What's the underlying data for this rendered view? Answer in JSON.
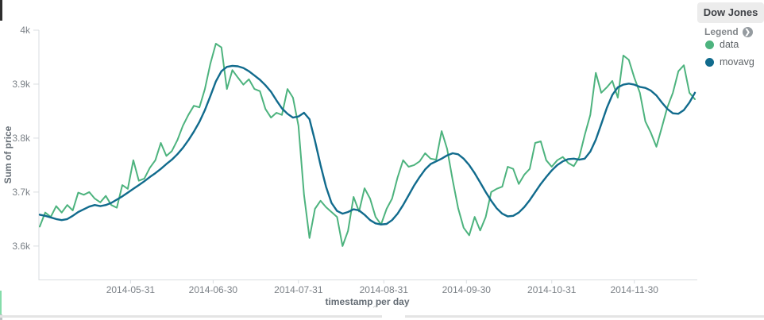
{
  "panel": {
    "title": "Dow Jones",
    "legend": {
      "heading": "Legend",
      "items": [
        {
          "label": "data",
          "color": "#4db37e"
        },
        {
          "label": "movavg",
          "color": "#116b8d"
        }
      ]
    }
  },
  "chart_data": {
    "type": "line",
    "title": "Dow Jones",
    "xlabel": "timestamp per day",
    "ylabel": "Sum of price",
    "grid": false,
    "legend_position": "right",
    "x_start_date": "2014-04-28",
    "x_step_days": 2,
    "ylim": [
      3538,
      4000
    ],
    "y_ticks": [
      {
        "value": 4000,
        "label": "4k"
      },
      {
        "value": 3900,
        "label": "3.9k"
      },
      {
        "value": 3800,
        "label": "3.8k"
      },
      {
        "value": 3700,
        "label": "3.7k"
      },
      {
        "value": 3600,
        "label": "3.6k"
      }
    ],
    "x_ticks": [
      {
        "day": 33,
        "label": "2014-05-31"
      },
      {
        "day": 63,
        "label": "2014-06-30"
      },
      {
        "day": 94,
        "label": "2014-07-31"
      },
      {
        "day": 125,
        "label": "2014-08-31"
      },
      {
        "day": 155,
        "label": "2014-09-30"
      },
      {
        "day": 186,
        "label": "2014-10-31"
      },
      {
        "day": 216,
        "label": "2014-11-30"
      }
    ],
    "series": [
      {
        "name": "data",
        "color": "#4db37e",
        "stroke_width": 2,
        "values": [
          3636,
          3662,
          3654,
          3674,
          3662,
          3676,
          3666,
          3699,
          3695,
          3700,
          3688,
          3681,
          3693,
          3676,
          3671,
          3713,
          3706,
          3759,
          3721,
          3725,
          3745,
          3759,
          3791,
          3767,
          3776,
          3796,
          3823,
          3843,
          3860,
          3857,
          3891,
          3938,
          3975,
          3968,
          3891,
          3926,
          3912,
          3899,
          3909,
          3891,
          3887,
          3854,
          3838,
          3847,
          3843,
          3891,
          3875,
          3823,
          3695,
          3615,
          3669,
          3684,
          3672,
          3663,
          3654,
          3600,
          3628,
          3691,
          3664,
          3707,
          3688,
          3654,
          3640,
          3669,
          3688,
          3727,
          3759,
          3747,
          3750,
          3757,
          3772,
          3762,
          3760,
          3813,
          3780,
          3722,
          3670,
          3634,
          3620,
          3654,
          3629,
          3654,
          3700,
          3706,
          3710,
          3747,
          3743,
          3715,
          3732,
          3743,
          3791,
          3794,
          3759,
          3747,
          3759,
          3765,
          3754,
          3748,
          3765,
          3806,
          3843,
          3921,
          3884,
          3894,
          3906,
          3875,
          3953,
          3945,
          3912,
          3884,
          3831,
          3810,
          3784,
          3820,
          3857,
          3884,
          3924,
          3935,
          3884,
          3872
        ]
      },
      {
        "name": "movavg",
        "color": "#116b8d",
        "stroke_width": 2.4,
        "values": [
          3658,
          3656,
          3653,
          3650,
          3648,
          3650,
          3656,
          3663,
          3668,
          3673,
          3676,
          3674,
          3676,
          3680,
          3686,
          3692,
          3699,
          3706,
          3713,
          3720,
          3728,
          3735,
          3743,
          3752,
          3760,
          3770,
          3782,
          3796,
          3812,
          3830,
          3852,
          3878,
          3905,
          3924,
          3932,
          3934,
          3933,
          3930,
          3924,
          3916,
          3908,
          3898,
          3886,
          3870,
          3855,
          3845,
          3838,
          3840,
          3847,
          3835,
          3795,
          3750,
          3710,
          3680,
          3665,
          3660,
          3663,
          3668,
          3666,
          3658,
          3648,
          3642,
          3640,
          3641,
          3648,
          3660,
          3676,
          3694,
          3712,
          3728,
          3742,
          3752,
          3757,
          3762,
          3768,
          3772,
          3770,
          3762,
          3750,
          3735,
          3718,
          3700,
          3684,
          3670,
          3660,
          3655,
          3656,
          3662,
          3672,
          3685,
          3700,
          3715,
          3728,
          3740,
          3750,
          3757,
          3761,
          3762,
          3760,
          3762,
          3775,
          3797,
          3826,
          3856,
          3880,
          3894,
          3899,
          3901,
          3899,
          3895,
          3893,
          3888,
          3879,
          3866,
          3854,
          3846,
          3845,
          3852,
          3866,
          3884
        ]
      }
    ]
  },
  "chrome": {
    "collapse_chevron": "⌃"
  }
}
